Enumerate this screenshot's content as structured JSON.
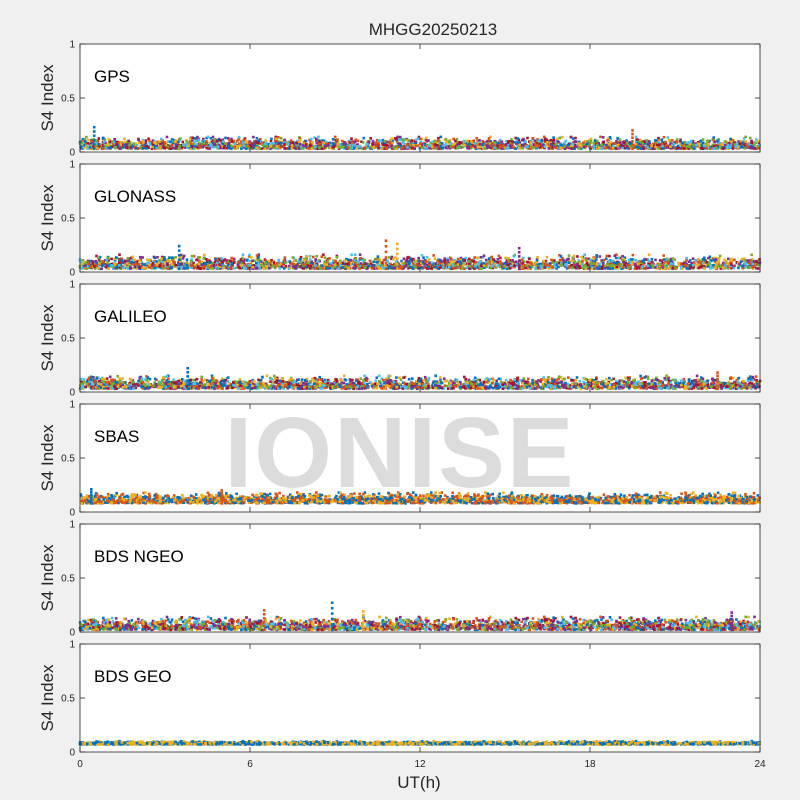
{
  "figure": {
    "title": "MHGG20250213",
    "watermark": "IONISE",
    "background_color": "#f0f0f0",
    "plot_background_color": "#ffffff"
  },
  "chart_data": {
    "type": "scatter",
    "title": "MHGG20250213",
    "xlabel": "UT(h)",
    "ylabel": "S4 Index",
    "xlim": [
      0,
      24
    ],
    "ylim": [
      0,
      1
    ],
    "x_ticks": [
      "0",
      "6",
      "12",
      "18",
      "24"
    ],
    "y_ticks": [
      "0",
      "0.5",
      "1"
    ],
    "grid": false,
    "series_colors": [
      "#0072BD",
      "#D95319",
      "#EDB120",
      "#7E2F8E",
      "#77AC30",
      "#4DBEEE",
      "#A2142F"
    ],
    "panels": [
      {
        "label": "GPS",
        "level_range": [
          0.03,
          0.14
        ],
        "colors": [
          "#0072BD",
          "#D95319",
          "#EDB120",
          "#7E2F8E",
          "#77AC30",
          "#4DBEEE",
          "#A2142F"
        ],
        "spikes": [
          {
            "x": 0.5,
            "y": 0.23
          },
          {
            "x": 19.5,
            "y": 0.2
          }
        ]
      },
      {
        "label": "GLONASS",
        "level_range": [
          0.03,
          0.16
        ],
        "colors": [
          "#0072BD",
          "#D95319",
          "#EDB120",
          "#7E2F8E",
          "#77AC30",
          "#4DBEEE",
          "#A2142F"
        ],
        "spikes": [
          {
            "x": 3.5,
            "y": 0.24
          },
          {
            "x": 10.8,
            "y": 0.29
          },
          {
            "x": 11.2,
            "y": 0.26
          },
          {
            "x": 15.5,
            "y": 0.22
          }
        ]
      },
      {
        "label": "GALILEO",
        "level_range": [
          0.03,
          0.15
        ],
        "colors": [
          "#0072BD",
          "#D95319",
          "#EDB120",
          "#7E2F8E",
          "#77AC30",
          "#4DBEEE",
          "#A2142F"
        ],
        "spikes": [
          {
            "x": 3.8,
            "y": 0.22
          },
          {
            "x": 22.5,
            "y": 0.18
          }
        ]
      },
      {
        "label": "SBAS",
        "level_range": [
          0.08,
          0.18
        ],
        "colors": [
          "#0072BD",
          "#D95319",
          "#EDB120"
        ],
        "spikes": [
          {
            "x": 0.4,
            "y": 0.21
          },
          {
            "x": 5.0,
            "y": 0.2
          }
        ]
      },
      {
        "label": "BDS NGEO",
        "level_range": [
          0.02,
          0.14
        ],
        "colors": [
          "#0072BD",
          "#D95319",
          "#EDB120",
          "#7E2F8E",
          "#77AC30",
          "#4DBEEE",
          "#A2142F"
        ],
        "spikes": [
          {
            "x": 8.9,
            "y": 0.27
          },
          {
            "x": 6.5,
            "y": 0.2
          },
          {
            "x": 10.0,
            "y": 0.19
          },
          {
            "x": 23.0,
            "y": 0.18
          }
        ]
      },
      {
        "label": "BDS GEO",
        "level_range": [
          0.07,
          0.1
        ],
        "colors": [
          "#EDB120",
          "#0072BD"
        ],
        "spikes": []
      }
    ]
  }
}
